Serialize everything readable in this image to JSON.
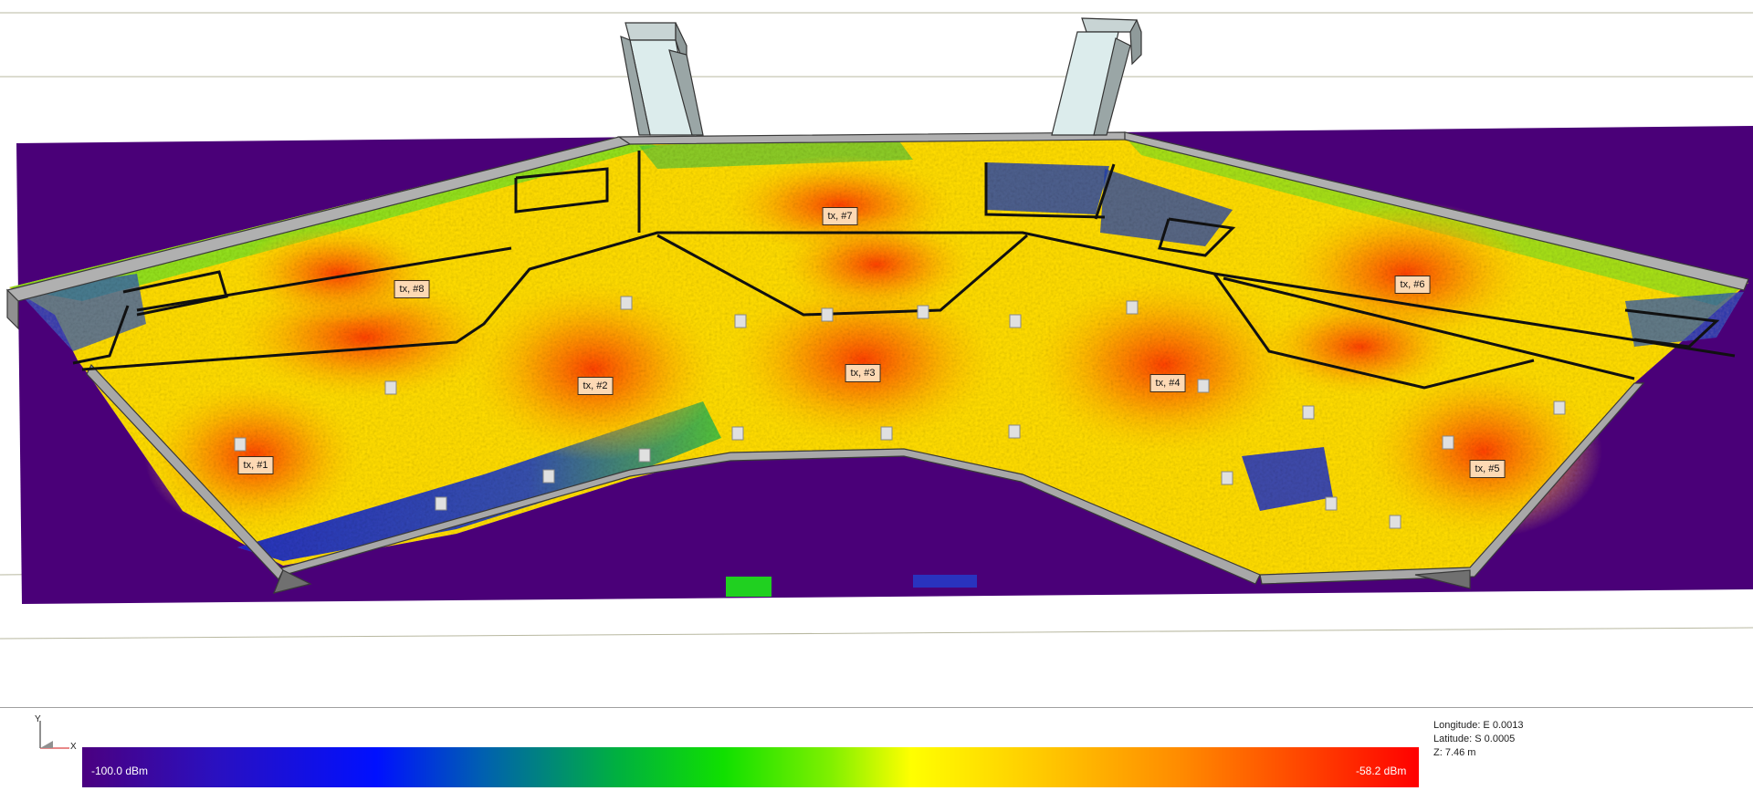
{
  "transmitters": [
    {
      "label": "tx, #1"
    },
    {
      "label": "tx, #2"
    },
    {
      "label": "tx, #3"
    },
    {
      "label": "tx, #4"
    },
    {
      "label": "tx, #5"
    },
    {
      "label": "tx, #6"
    },
    {
      "label": "tx, #7"
    },
    {
      "label": "tx, #8"
    }
  ],
  "axis": {
    "y": "Y",
    "x": "X"
  },
  "colorbar": {
    "min_label": "-100.0 dBm",
    "max_label": "-58.2 dBm",
    "colors": [
      "#4b0080",
      "#0010ff",
      "#00b040",
      "#10e000",
      "#ffff00",
      "#ff8c00",
      "#ff0000"
    ]
  },
  "coords": {
    "longitude": "Longitude: E  0.0013",
    "latitude": "Latitude: S  0.0005",
    "z": "Z: 7.46 m"
  }
}
